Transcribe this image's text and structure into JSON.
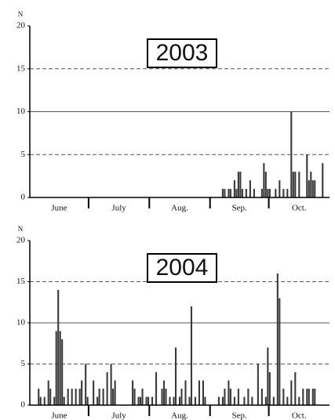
{
  "chart_data": [
    {
      "type": "bar",
      "title": "2003",
      "y_label": "N",
      "color": "#3a3a3a",
      "categories": [
        "June",
        "July",
        "Aug.",
        "Sep.",
        "Oct."
      ],
      "values": [
        [
          0,
          0,
          0,
          0,
          0,
          0,
          0,
          0,
          0,
          0,
          0,
          0,
          0,
          0,
          0,
          0,
          0,
          0,
          0,
          0,
          0,
          0,
          0,
          0,
          0,
          0,
          0,
          0,
          0,
          0
        ],
        [
          0,
          0,
          0,
          0,
          0,
          0,
          0,
          0,
          0,
          0,
          0,
          0,
          0,
          0,
          0,
          0,
          0,
          0,
          0,
          0,
          0,
          0,
          0,
          0,
          0,
          0,
          0,
          0,
          0,
          0,
          0
        ],
        [
          0,
          0,
          0,
          0,
          0,
          0,
          0,
          0,
          0,
          0,
          0,
          0,
          0,
          0,
          0,
          0,
          0,
          0,
          0,
          0,
          0,
          0,
          0,
          0,
          0,
          0,
          0,
          0,
          0,
          0,
          0
        ],
        [
          0,
          0,
          0,
          0,
          0,
          0,
          1,
          1,
          0,
          1,
          1,
          0,
          2,
          1,
          3,
          3,
          1,
          0,
          1,
          0,
          2,
          0,
          1,
          0,
          0,
          0,
          1,
          4,
          3,
          1
        ],
        [
          1,
          0,
          0,
          1,
          0,
          2,
          0,
          1,
          0,
          1,
          0,
          10,
          3,
          3,
          0,
          3,
          0,
          0,
          0,
          5,
          2,
          3,
          2,
          2,
          0,
          0,
          0,
          4,
          0,
          0,
          0
        ]
      ],
      "ylim": [
        0,
        20
      ],
      "yticks": [
        0,
        5,
        10,
        15,
        20
      ],
      "grid_styles": [
        "none",
        "dashed",
        "solid",
        "dashed",
        "none"
      ]
    },
    {
      "type": "bar",
      "title": "2004",
      "y_label": "N",
      "color": "#3a3a3a",
      "categories": [
        "June",
        "July",
        "Aug.",
        "Sep.",
        "Oct."
      ],
      "values": [
        [
          0,
          0,
          0,
          0,
          2,
          1,
          0,
          1,
          0,
          3,
          2,
          0,
          1,
          9,
          14,
          9,
          8,
          1,
          0,
          2,
          0,
          2,
          0,
          2,
          0,
          2,
          3,
          0,
          5,
          1
        ],
        [
          0,
          0,
          3,
          0,
          1,
          2,
          0,
          2,
          0,
          4,
          0,
          5,
          2,
          3,
          0,
          0,
          0,
          0,
          0,
          0,
          0,
          0,
          3,
          2,
          0,
          1,
          1,
          2,
          0,
          1,
          1
        ],
        [
          0,
          1,
          0,
          4,
          0,
          0,
          2,
          3,
          2,
          0,
          1,
          0,
          1,
          7,
          0,
          1,
          2,
          0,
          3,
          0,
          1,
          12,
          0,
          1,
          0,
          3,
          0,
          3,
          1,
          0,
          0
        ],
        [
          0,
          0,
          0,
          0,
          1,
          0,
          1,
          2,
          0,
          3,
          2,
          0,
          1,
          0,
          2,
          0,
          0,
          1,
          0,
          2,
          0,
          1,
          0,
          0,
          5,
          0,
          2,
          0,
          1,
          7
        ],
        [
          4,
          0,
          1,
          0,
          16,
          13,
          0,
          2,
          0,
          1,
          0,
          3,
          0,
          4,
          0,
          1,
          0,
          2,
          0,
          2,
          2,
          0,
          2,
          2,
          0,
          0,
          0,
          0,
          0,
          0,
          0
        ]
      ],
      "ylim": [
        0,
        20
      ],
      "yticks": [
        0,
        5,
        10,
        15,
        20
      ],
      "grid_styles": [
        "none",
        "dashed",
        "solid",
        "dashed",
        "none"
      ]
    }
  ]
}
